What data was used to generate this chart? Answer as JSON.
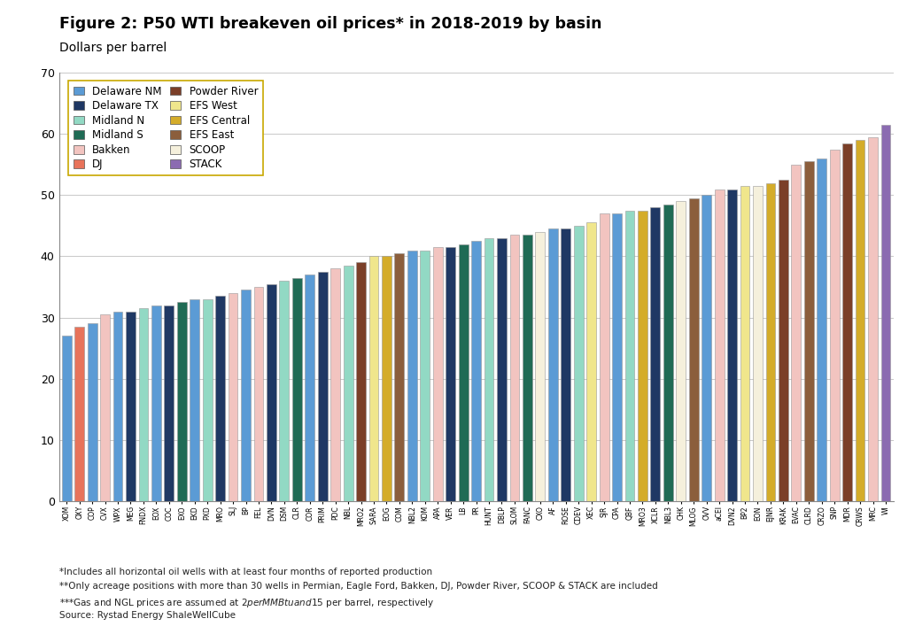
{
  "title": "Figure 2: P50 WTI breakeven oil prices* in 2018-2019 by basin",
  "subtitle": "Dollars per barrel",
  "footnotes": [
    "*Includes all horizontal oil wells with at least four months of reported production",
    "**Only acreage positions with more than 30 wells in Permian, Eagle Ford, Bakken, DJ, Powder River, SCOOP & STACK are included",
    "***Gas and NGL prices are assumed at $2 per MMBtu and $15 per barrel, respectively",
    "Source: Rystad Energy ShaleWellCube"
  ],
  "ylim": [
    0,
    70
  ],
  "yticks": [
    0,
    10,
    20,
    30,
    40,
    50,
    60,
    70
  ],
  "legend_entries": [
    {
      "label": "Delaware NM",
      "color": "#5B9BD5"
    },
    {
      "label": "Delaware TX",
      "color": "#1F3864"
    },
    {
      "label": "Midland N",
      "color": "#92D9C4"
    },
    {
      "label": "Midland S",
      "color": "#1F6B55"
    },
    {
      "label": "Bakken",
      "color": "#F2C4C0"
    },
    {
      "label": "DJ",
      "color": "#E8735A"
    },
    {
      "label": "Powder River",
      "color": "#7B3F28"
    },
    {
      "label": "EFS West",
      "color": "#F0E68C"
    },
    {
      "label": "EFS Central",
      "color": "#D4AC2A"
    },
    {
      "label": "EFS East",
      "color": "#8B5E3C"
    },
    {
      "label": "SCOOP",
      "color": "#F5F0DC"
    },
    {
      "label": "STACK",
      "color": "#8B6BB1"
    }
  ],
  "bars": [
    {
      "ticker": "XOM",
      "value": 27.0,
      "basin": "Delaware NM"
    },
    {
      "ticker": "OXY",
      "value": 28.5,
      "basin": "DJ"
    },
    {
      "ticker": "COP",
      "value": 29.0,
      "basin": "Delaware NM"
    },
    {
      "ticker": "CVX",
      "value": 30.5,
      "basin": "Bakken"
    },
    {
      "ticker": "WPX",
      "value": 31.0,
      "basin": "Delaware NM"
    },
    {
      "ticker": "MEG",
      "value": 31.0,
      "basin": "Delaware TX"
    },
    {
      "ticker": "FNDX",
      "value": 31.5,
      "basin": "Midland N"
    },
    {
      "ticker": "EOX",
      "value": 32.0,
      "basin": "Delaware NM"
    },
    {
      "ticker": "COC",
      "value": 32.0,
      "basin": "Delaware TX"
    },
    {
      "ticker": "EXO",
      "value": 32.5,
      "basin": "Midland S"
    },
    {
      "ticker": "EKD",
      "value": 33.0,
      "basin": "Delaware NM"
    },
    {
      "ticker": "PXD",
      "value": 33.0,
      "basin": "Midland N"
    },
    {
      "ticker": "MRO",
      "value": 33.5,
      "basin": "Delaware TX"
    },
    {
      "ticker": "SLJ",
      "value": 34.0,
      "basin": "Bakken"
    },
    {
      "ticker": "BP",
      "value": 34.5,
      "basin": "Delaware NM"
    },
    {
      "ticker": "FEL",
      "value": 35.0,
      "basin": "Bakken"
    },
    {
      "ticker": "DVN",
      "value": 35.5,
      "basin": "Delaware TX"
    },
    {
      "ticker": "DSM",
      "value": 36.0,
      "basin": "Midland N"
    },
    {
      "ticker": "CLR",
      "value": 36.5,
      "basin": "Midland S"
    },
    {
      "ticker": "COR",
      "value": 37.0,
      "basin": "Delaware NM"
    },
    {
      "ticker": "PRIM",
      "value": 37.5,
      "basin": "Delaware TX"
    },
    {
      "ticker": "PDC",
      "value": 38.0,
      "basin": "Bakken"
    },
    {
      "ticker": "NBL",
      "value": 38.5,
      "basin": "Midland N"
    },
    {
      "ticker": "MRO2",
      "value": 39.0,
      "basin": "Powder River"
    },
    {
      "ticker": "SARA",
      "value": 40.0,
      "basin": "EFS West"
    },
    {
      "ticker": "EOG",
      "value": 40.0,
      "basin": "EFS Central"
    },
    {
      "ticker": "COM",
      "value": 40.5,
      "basin": "EFS East"
    },
    {
      "ticker": "NBL2",
      "value": 41.0,
      "basin": "Delaware NM"
    },
    {
      "ticker": "KOM",
      "value": 41.0,
      "basin": "Midland N"
    },
    {
      "ticker": "APA",
      "value": 41.5,
      "basin": "Bakken"
    },
    {
      "ticker": "VER",
      "value": 41.5,
      "basin": "Delaware TX"
    },
    {
      "ticker": "LB",
      "value": 42.0,
      "basin": "Midland S"
    },
    {
      "ticker": "PR",
      "value": 42.5,
      "basin": "Delaware NM"
    },
    {
      "ticker": "HUNT",
      "value": 43.0,
      "basin": "Midland N"
    },
    {
      "ticker": "DBLP",
      "value": 43.0,
      "basin": "Delaware TX"
    },
    {
      "ticker": "SLOM",
      "value": 43.5,
      "basin": "Bakken"
    },
    {
      "ticker": "FANC",
      "value": 43.5,
      "basin": "Midland S"
    },
    {
      "ticker": "CXO",
      "value": 44.0,
      "basin": "SCOOP"
    },
    {
      "ticker": "AF",
      "value": 44.5,
      "basin": "Delaware NM"
    },
    {
      "ticker": "ROSE",
      "value": 44.5,
      "basin": "Delaware TX"
    },
    {
      "ticker": "CDEV",
      "value": 45.0,
      "basin": "Midland N"
    },
    {
      "ticker": "XEC",
      "value": 45.5,
      "basin": "EFS West"
    },
    {
      "ticker": "SJR",
      "value": 47.0,
      "basin": "Bakken"
    },
    {
      "ticker": "CPA",
      "value": 47.0,
      "basin": "Delaware NM"
    },
    {
      "ticker": "QBF",
      "value": 47.5,
      "basin": "Midland N"
    },
    {
      "ticker": "MRO3",
      "value": 47.5,
      "basin": "EFS Central"
    },
    {
      "ticker": "XCLR",
      "value": 48.0,
      "basin": "Delaware TX"
    },
    {
      "ticker": "NBL3",
      "value": 48.5,
      "basin": "Midland S"
    },
    {
      "ticker": "CHK",
      "value": 49.0,
      "basin": "SCOOP"
    },
    {
      "ticker": "MLOG",
      "value": 49.5,
      "basin": "EFS East"
    },
    {
      "ticker": "OVV",
      "value": 50.0,
      "basin": "Delaware NM"
    },
    {
      "ticker": "aCEI",
      "value": 51.0,
      "basin": "Bakken"
    },
    {
      "ticker": "DVN2",
      "value": 51.0,
      "basin": "Delaware TX"
    },
    {
      "ticker": "BP2",
      "value": 51.5,
      "basin": "EFS West"
    },
    {
      "ticker": "EON",
      "value": 51.5,
      "basin": "SCOOP"
    },
    {
      "ticker": "EJNR",
      "value": 52.0,
      "basin": "EFS Central"
    },
    {
      "ticker": "KRAK",
      "value": 52.5,
      "basin": "Powder River"
    },
    {
      "ticker": "EVAC",
      "value": 55.0,
      "basin": "Bakken"
    },
    {
      "ticker": "CLRD",
      "value": 55.5,
      "basin": "EFS East"
    },
    {
      "ticker": "CRZO",
      "value": 56.0,
      "basin": "Delaware NM"
    },
    {
      "ticker": "SNP",
      "value": 57.5,
      "basin": "Bakken"
    },
    {
      "ticker": "MDR",
      "value": 58.5,
      "basin": "Powder River"
    },
    {
      "ticker": "CRWS",
      "value": 59.0,
      "basin": "EFS Central"
    },
    {
      "ticker": "MRC",
      "value": 59.5,
      "basin": "Bakken"
    },
    {
      "ticker": "WI",
      "value": 61.5,
      "basin": "STACK"
    }
  ],
  "background_color": "#FFFFFF",
  "grid_color": "#C8C8C8",
  "basin_colors": {
    "Delaware NM": "#5B9BD5",
    "Delaware TX": "#1F3864",
    "Midland N": "#92D9C4",
    "Midland S": "#1F6B55",
    "Bakken": "#F2C4C0",
    "DJ": "#E8735A",
    "Powder River": "#7B3F28",
    "EFS West": "#F0E68C",
    "EFS Central": "#D4AC2A",
    "EFS East": "#8B5E3C",
    "SCOOP": "#F5F0DC",
    "STACK": "#8B6BB1"
  }
}
